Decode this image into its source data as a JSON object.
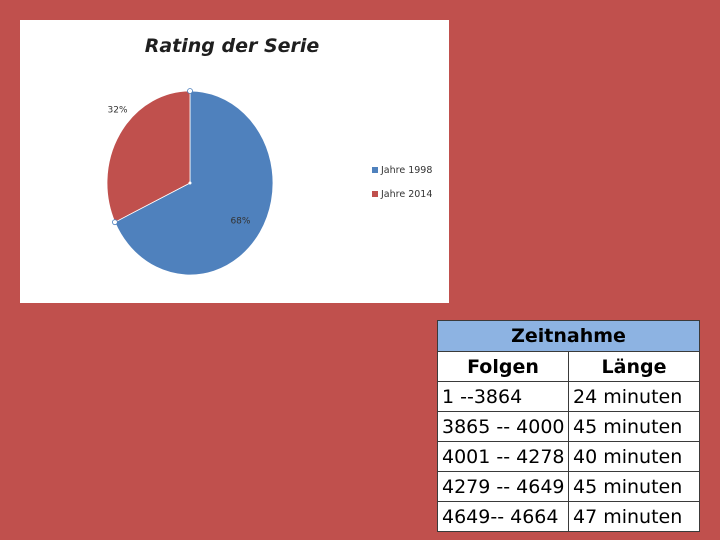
{
  "chart_data": {
    "type": "pie",
    "title": "Rating der Serie",
    "slices": [
      {
        "label": "Jahre 1998",
        "value": 68,
        "display": "68%",
        "color": "#4f81bd"
      },
      {
        "label": "Jahre 2014",
        "value": 32,
        "display": "32%",
        "color": "#c0504d"
      }
    ],
    "legend_position": "right"
  },
  "table": {
    "caption": "Zeitnahme",
    "headers": [
      "Folgen",
      "Länge"
    ],
    "rows": [
      [
        "1 --3864",
        "24 minuten"
      ],
      [
        "3865 -- 4000",
        "45 minuten"
      ],
      [
        "4001 -- 4278",
        "40 minuten"
      ],
      [
        "4279 --  4649",
        "45 minuten"
      ],
      [
        "4649-- 4664",
        "47 minuten"
      ]
    ]
  }
}
